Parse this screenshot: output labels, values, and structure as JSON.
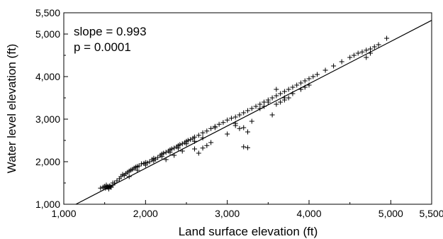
{
  "chart_data": {
    "type": "scatter",
    "xlabel": "Land surface elevation (ft)",
    "ylabel": "Water level elevation (ft)",
    "xlim": [
      1000,
      5500
    ],
    "ylim": [
      1000,
      5500
    ],
    "x_ticks": [
      "1,000",
      "2,000",
      "3,000",
      "4,000",
      "5,000",
      "5,500"
    ],
    "y_ticks": [
      "1,000",
      "2,000",
      "3,000",
      "4,000",
      "5,000",
      "5,500"
    ],
    "x_tick_values": [
      1000,
      2000,
      3000,
      4000,
      5000,
      5500
    ],
    "y_tick_values": [
      1000,
      2000,
      3000,
      4000,
      5000,
      5500
    ],
    "annotations": {
      "slope": "slope = 0.993",
      "p": "p = 0.0001"
    },
    "marker": "+",
    "grid": false,
    "fit_line": {
      "slope": 0.993,
      "intercept": -140
    },
    "points": {
      "x": [
        1450,
        1480,
        1500,
        1510,
        1520,
        1530,
        1540,
        1550,
        1560,
        1570,
        1580,
        1600,
        1620,
        1650,
        1680,
        1700,
        1720,
        1740,
        1760,
        1780,
        1800,
        1820,
        1840,
        1860,
        1880,
        1900,
        1920,
        1950,
        1980,
        2000,
        2020,
        2050,
        2080,
        2100,
        2120,
        2150,
        2180,
        2200,
        2220,
        2250,
        2280,
        2300,
        2320,
        2350,
        2380,
        2400,
        2420,
        2450,
        2480,
        2500,
        2520,
        2550,
        2580,
        2600,
        2650,
        2700,
        2750,
        2800,
        2850,
        2900,
        2950,
        3000,
        3050,
        3100,
        3150,
        3200,
        3250,
        3300,
        3350,
        3400,
        3450,
        3500,
        3550,
        3600,
        3650,
        3700,
        3750,
        3800,
        3850,
        3900,
        3950,
        4000,
        4050,
        4100,
        4200,
        4300,
        4400,
        4500,
        4550,
        4600,
        4650,
        4700,
        4750,
        4800,
        4850,
        4950,
        1550,
        1600,
        1800,
        1900,
        2000,
        2100,
        2200,
        2300,
        2400,
        2500,
        2600,
        2700,
        2850,
        3000,
        3100,
        3150,
        3200,
        3250,
        3300,
        3400,
        3450,
        3500,
        3550,
        3600,
        3700,
        3800,
        3900,
        3950,
        2600,
        2650,
        2700,
        2750,
        2800,
        3100,
        3150,
        3200,
        3250,
        2250,
        2350,
        2450,
        3600,
        3650,
        3700,
        3750,
        4000,
        4700,
        4750
      ],
      "y": [
        1380,
        1400,
        1420,
        1380,
        1450,
        1400,
        1420,
        1390,
        1430,
        1410,
        1400,
        1450,
        1500,
        1550,
        1600,
        1650,
        1700,
        1680,
        1720,
        1750,
        1780,
        1800,
        1820,
        1850,
        1870,
        1890,
        1900,
        1950,
        1960,
        1980,
        1970,
        2000,
        2050,
        2080,
        2060,
        2100,
        2150,
        2180,
        2200,
        2220,
        2250,
        2280,
        2300,
        2320,
        2350,
        2380,
        2400,
        2420,
        2450,
        2480,
        2500,
        2520,
        2550,
        2580,
        2620,
        2680,
        2720,
        2780,
        2830,
        2880,
        2920,
        2980,
        3020,
        3050,
        3100,
        3150,
        3200,
        3250,
        3300,
        3350,
        3400,
        3450,
        3500,
        3550,
        3600,
        3650,
        3700,
        3750,
        3800,
        3850,
        3900,
        3950,
        4000,
        4050,
        4150,
        4250,
        4350,
        4450,
        4500,
        4550,
        4580,
        4620,
        4650,
        4700,
        4750,
        4900,
        1360,
        1500,
        1650,
        1800,
        1920,
        2020,
        2120,
        2220,
        2320,
        2420,
        2480,
        2560,
        2800,
        2650,
        2900,
        2780,
        2350,
        2330,
        2950,
        3250,
        3300,
        3400,
        3100,
        3700,
        3500,
        3600,
        3700,
        3750,
        2300,
        2200,
        2320,
        2380,
        2450,
        2850,
        3100,
        2800,
        2700,
        2050,
        2150,
        2250,
        3350,
        3400,
        3450,
        3500,
        3800,
        4450,
        4550
      ]
    }
  }
}
